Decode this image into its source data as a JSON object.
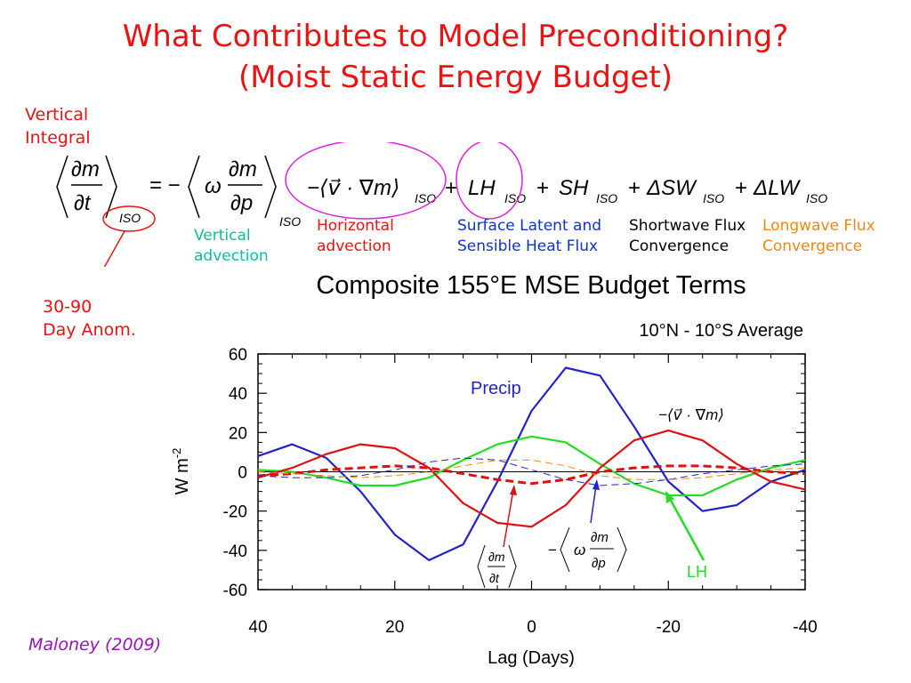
{
  "slide": {
    "title_line1": "What Contributes to Model Preconditioning?",
    "title_line2": "(Moist Static Energy Budget)",
    "vertical_integral": [
      "Vertical",
      "Integral"
    ],
    "day_anom": [
      "30-90",
      "Day Anom."
    ],
    "citation": "Maloney (2009)",
    "colors": {
      "red": "#ee1111",
      "teal": "#11bb99",
      "blue": "#1133cc",
      "orange": "#ee8811",
      "purple": "#9911bb",
      "magenta": "#dd22dd"
    }
  },
  "equation": {
    "lhs_sub": "ISO",
    "eq_sign": "= −",
    "omega": "ω",
    "vert_sub": "ISO",
    "adv_term": "−⟨v⃗ · ∇m⟩",
    "plus1": "+",
    "lh": "LH",
    "plus2": "+",
    "sh": "SH",
    "plus3": "+",
    "dsw": "ΔSW",
    "plus4": "+",
    "dlw": "ΔLW",
    "sub": "ISO",
    "dm": "∂m",
    "dt": "∂t",
    "dp": "∂p"
  },
  "annotations": {
    "vertical_advection": [
      "Vertical",
      "advection"
    ],
    "horizontal_advection": [
      "Horizontal",
      "advection"
    ],
    "surface_flux": [
      "Surface Latent and",
      "Sensible Heat Flux"
    ],
    "shortwave": [
      "Shortwave Flux",
      "Convergence"
    ],
    "longwave": [
      "Longwave Flux",
      "Convergence"
    ]
  },
  "chart_data": {
    "type": "line",
    "title": "Composite 155°E MSE Budget Terms",
    "subtitle": "10°N - 10°S Average",
    "xlabel": "Lag (Days)",
    "ylabel": "W m",
    "ylabel_sup": "-2",
    "xlim": [
      40,
      -40
    ],
    "ylim": [
      -60,
      60
    ],
    "x_ticks": [
      40,
      20,
      0,
      -20,
      -40
    ],
    "y_ticks": [
      60,
      40,
      20,
      0,
      -20,
      -40,
      -60
    ],
    "x": [
      40,
      35,
      30,
      25,
      20,
      15,
      10,
      5,
      0,
      -5,
      -10,
      -15,
      -20,
      -25,
      -30,
      -35,
      -40
    ],
    "series": [
      {
        "name": "Precip",
        "color": "#2222cc",
        "dash": "solid",
        "width": 2.2,
        "values": [
          8,
          14,
          7,
          -10,
          -32,
          -45,
          -37,
          -5,
          31,
          53,
          49,
          23,
          -5,
          -20,
          -17,
          -5,
          1
        ]
      },
      {
        "name": "LH",
        "color": "#22dd22",
        "dash": "solid",
        "width": 2.2,
        "values": [
          1,
          0,
          -3,
          -7,
          -7,
          -3,
          6,
          14,
          18,
          15,
          4,
          -6,
          -12,
          -12,
          -4,
          2,
          6
        ]
      },
      {
        "name": "",
        "color": "#dd1111",
        "dash": "solid",
        "width": 2.2,
        "values": [
          -3,
          2,
          9,
          14,
          12,
          2,
          -16,
          -26,
          -28,
          -17,
          2,
          16,
          21,
          16,
          4,
          -5,
          -9
        ]
      },
      {
        "name": "",
        "color": "#dd1111",
        "dash": "bold-dash",
        "width": 3,
        "values": [
          -2,
          -1,
          1,
          2,
          3,
          2,
          -1,
          -4,
          -6,
          -4,
          0,
          2,
          3,
          3,
          2,
          0,
          -1
        ]
      },
      {
        "name": "",
        "color": "#2222cc",
        "dash": "thin-dash",
        "width": 1,
        "values": [
          -2,
          -3,
          -3,
          -2,
          1,
          5,
          7,
          6,
          1,
          -4,
          -7,
          -6,
          -4,
          -1,
          1,
          3,
          4
        ]
      },
      {
        "name": "",
        "color": "#ee8811",
        "dash": "thin-dash",
        "width": 1,
        "values": [
          0,
          -1,
          -2,
          -3,
          -2,
          0,
          3,
          6,
          6,
          3,
          -2,
          -4,
          -4,
          -3,
          -1,
          1,
          2
        ]
      }
    ],
    "annotations": {
      "precip_label": "Precip",
      "lh_label": "LH",
      "adv_label": "−⟨v⃗ · ∇m⟩",
      "dmdt_label": "∂m/∂t",
      "omega_label": "−⟨ω ∂m/∂p⟩"
    }
  }
}
